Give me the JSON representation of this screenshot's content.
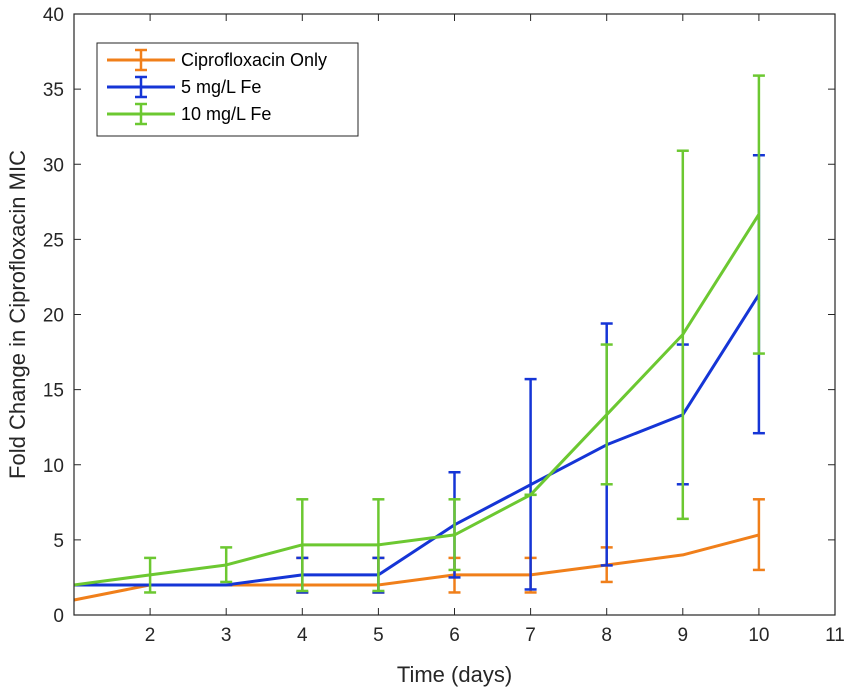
{
  "chart_data": {
    "type": "line",
    "xlabel": "Time (days)",
    "ylabel": "Fold Change in Ciprofloxacin MIC",
    "xlim": [
      1,
      11
    ],
    "ylim": [
      0,
      40
    ],
    "x_ticks": [
      2,
      3,
      4,
      5,
      6,
      7,
      8,
      9,
      10,
      11
    ],
    "x_tick_labels": [
      "2",
      "3",
      "4",
      "5",
      "6",
      "7",
      "8",
      "9",
      "10",
      "11"
    ],
    "y_ticks": [
      0,
      5,
      10,
      15,
      20,
      25,
      30,
      35,
      40
    ],
    "y_tick_labels": [
      "0",
      "5",
      "10",
      "15",
      "20",
      "25",
      "30",
      "35",
      "40"
    ],
    "legend_position": "top-left",
    "series": [
      {
        "name": "Ciprofloxacin Only",
        "color": "#F07F1A",
        "x": [
          1,
          2,
          3,
          4,
          5,
          6,
          7,
          8,
          9,
          10
        ],
        "y": [
          1,
          2,
          2,
          2,
          2,
          2.67,
          2.67,
          3.33,
          4,
          5.33
        ],
        "err_low": [
          null,
          2,
          2,
          1.5,
          1.5,
          1.5,
          1.5,
          2.2,
          null,
          3
        ],
        "err_high": [
          null,
          2,
          2,
          3.8,
          3.8,
          3.8,
          3.8,
          4.5,
          null,
          7.7
        ]
      },
      {
        "name": "5 mg/L Fe",
        "color": "#1535D6",
        "x": [
          1,
          2,
          3,
          4,
          5,
          6,
          7,
          8,
          9,
          10
        ],
        "y": [
          2,
          2,
          2,
          2.67,
          2.67,
          6,
          8.67,
          11.33,
          13.33,
          21.33
        ],
        "err_low": [
          null,
          2,
          2,
          1.5,
          1.5,
          2.5,
          1.7,
          3.3,
          8.7,
          12.1
        ],
        "err_high": [
          null,
          2,
          2,
          3.8,
          3.8,
          9.5,
          15.7,
          19.4,
          18,
          30.6
        ]
      },
      {
        "name": "10 mg/L Fe",
        "color": "#6CC831",
        "x": [
          1,
          2,
          3,
          4,
          5,
          6,
          7,
          8,
          9,
          10
        ],
        "y": [
          2,
          2.67,
          3.33,
          4.67,
          4.67,
          5.33,
          8,
          13.33,
          18.67,
          26.67
        ],
        "err_low": [
          null,
          1.5,
          2.2,
          1.6,
          1.6,
          3,
          8,
          8.7,
          6.4,
          17.4
        ],
        "err_high": [
          null,
          3.8,
          4.5,
          7.7,
          7.7,
          7.7,
          8,
          18,
          30.9,
          35.9
        ]
      }
    ]
  }
}
